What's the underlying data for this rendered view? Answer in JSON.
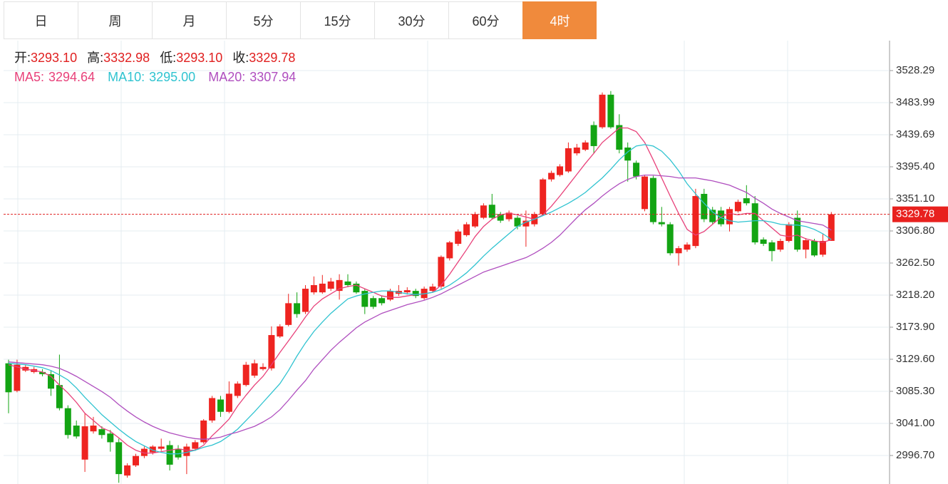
{
  "tabs": [
    "日",
    "周",
    "月",
    "5分",
    "15分",
    "30分",
    "60分",
    "4时"
  ],
  "active_tab": 7,
  "info": [
    {
      "label": "开:",
      "value": "3293.10"
    },
    {
      "label": "高:",
      "value": "3332.98"
    },
    {
      "label": "低:",
      "value": "3293.10"
    },
    {
      "label": "收:",
      "value": "3329.78"
    }
  ],
  "ma_info": [
    {
      "label": "MA5:",
      "value": "3294.64",
      "color": "#e8417a"
    },
    {
      "label": "MA10:",
      "value": "3295.00",
      "color": "#2fc3d0"
    },
    {
      "label": "MA20:",
      "value": "3307.94",
      "color": "#b04fbf"
    }
  ],
  "chart_data": {
    "type": "candlestick",
    "up_color": "#ee2420",
    "down_color": "#13a413",
    "ylim": [
      2957.32,
      3569.64
    ],
    "yticks": [
      3528.29,
      3483.99,
      3439.69,
      {
        "value": 3395.4,
        "label": "3395.40"
      },
      {
        "value": 3351.1,
        "label": "3351.10"
      },
      {
        "value": 3306.8,
        "label": "3306.80"
      },
      {
        "value": 3262.5,
        "label": "3262.50"
      },
      {
        "value": 3218.2,
        "label": "3218.20"
      },
      {
        "value": 3173.9,
        "label": "3173.90"
      },
      {
        "value": 3129.6,
        "label": "3129.60"
      },
      {
        "value": 3085.3,
        "label": "3085.30"
      },
      {
        "value": 3041.0,
        "label": "3041.00"
      },
      {
        "value": 2996.7,
        "label": "2996.70"
      }
    ],
    "grid": true,
    "open": [
      3124,
      3086,
      3114,
      3112,
      3112,
      3109,
      3094,
      3062,
      3038,
      2991,
      3030,
      3033,
      3027,
      3015,
      2969,
      2983,
      2996,
      3001,
      3006,
      3011,
      3006,
      2996,
      3006,
      3015,
      3045,
      3074,
      3057,
      3079,
      3094,
      3107,
      3116,
      3117,
      3161,
      3177,
      3207,
      3195,
      3222,
      3222,
      3227,
      3224,
      3237,
      3234,
      3224,
      3214,
      3214,
      3212,
      3220,
      3222,
      3224,
      3214,
      3224,
      3230,
      3269,
      3289,
      3301,
      3313,
      3325,
      3343,
      3330,
      3323,
      3325,
      3313,
      3316,
      3330,
      3378,
      3384,
      3389,
      3414,
      3419,
      3453,
      3450,
      3495,
      3453,
      3422,
      3401,
      3337,
      3380,
      3319,
      3316,
      3276,
      3281,
      3286,
      3358,
      3336,
      3335,
      3316,
      3334,
      3352,
      3345,
      3295,
      3291,
      3281,
      3293,
      3325,
      3281,
      3293,
      3274,
      3293.1
    ],
    "high": [
      3129,
      3129,
      3122,
      3119,
      3116,
      3114,
      3136,
      3066,
      3045,
      3055,
      3050,
      3037,
      3032,
      3020,
      2986,
      2999,
      3009,
      3011,
      3020,
      3017,
      3011,
      3013,
      3018,
      3047,
      3079,
      3079,
      3099,
      3099,
      3126,
      3129,
      3124,
      3175,
      3178,
      3220,
      3222,
      3232,
      3244,
      3246,
      3242,
      3247,
      3247,
      3237,
      3227,
      3217,
      3217,
      3227,
      3232,
      3229,
      3227,
      3230,
      3234,
      3273,
      3293,
      3309,
      3319,
      3333,
      3345,
      3358,
      3333,
      3335,
      3328,
      3335,
      3333,
      3380,
      3390,
      3399,
      3429,
      3427,
      3432,
      3458,
      3498,
      3500,
      3468,
      3429,
      3404,
      3384,
      3383,
      3340,
      3319,
      3286,
      3291,
      3365,
      3365,
      3340,
      3340,
      3340,
      3350,
      3370,
      3355,
      3298,
      3294,
      3296,
      3319,
      3335,
      3297,
      3296,
      3303,
      3332.98
    ],
    "low": [
      3055,
      3084,
      3112,
      3110,
      3106,
      3079,
      3059,
      3020,
      3020,
      2974,
      3027,
      3020,
      3002,
      2959,
      2966,
      2981,
      2993,
      2998,
      3003,
      2976,
      2991,
      2971,
      3003,
      3013,
      3042,
      3050,
      3055,
      3076,
      3092,
      3104,
      3114,
      3114,
      3159,
      3175,
      3187,
      3192,
      3219,
      3220,
      3224,
      3212,
      3229,
      3220,
      3192,
      3199,
      3204,
      3210,
      3217,
      3219,
      3214,
      3212,
      3222,
      3227,
      3266,
      3286,
      3299,
      3311,
      3323,
      3323,
      3318,
      3320,
      3309,
      3285,
      3313,
      3328,
      3375,
      3382,
      3387,
      3411,
      3417,
      3414,
      3448,
      3448,
      3414,
      3375,
      3378,
      3334,
      3316,
      3313,
      3273,
      3259,
      3278,
      3283,
      3319,
      3316,
      3313,
      3306,
      3332,
      3342,
      3288,
      3286,
      3265,
      3278,
      3291,
      3278,
      3269,
      3271,
      3271,
      3293.1
    ],
    "close": [
      3084,
      3122,
      3119,
      3116,
      3109,
      3089,
      3062,
      3025,
      3023,
      3037,
      3038,
      3025,
      3015,
      2971,
      2983,
      2996,
      3006,
      3009,
      3009,
      2984,
      2994,
      3009,
      3015,
      3045,
      3076,
      3057,
      3082,
      3096,
      3122,
      3124,
      3119,
      3163,
      3175,
      3207,
      3192,
      3227,
      3232,
      3234,
      3237,
      3239,
      3232,
      3222,
      3202,
      3202,
      3207,
      3224,
      3224,
      3225,
      3217,
      3227,
      3230,
      3271,
      3291,
      3306,
      3316,
      3330,
      3342,
      3325,
      3321,
      3332,
      3313,
      3321,
      3330,
      3378,
      3387,
      3396,
      3421,
      3422,
      3429,
      3424,
      3495,
      3450,
      3419,
      3404,
      3382,
      3382,
      3319,
      3316,
      3276,
      3283,
      3288,
      3355,
      3323,
      3319,
      3316,
      3337,
      3347,
      3345,
      3291,
      3289,
      3279,
      3293,
      3316,
      3281,
      3294,
      3273,
      3293,
      3329.78
    ],
    "series": [
      {
        "name": "MA5",
        "color": "#e8417a",
        "values": [
          3122,
          3119,
          3116,
          3114,
          3112,
          3106,
          3094,
          3083,
          3070,
          3055,
          3045,
          3035,
          3030,
          3021,
          3011,
          3004,
          3000,
          3000,
          3002,
          3004,
          3006,
          3004,
          3004,
          3011,
          3024,
          3035,
          3047,
          3065,
          3080,
          3094,
          3106,
          3122,
          3139,
          3155,
          3171,
          3188,
          3203,
          3213,
          3220,
          3227,
          3230,
          3232,
          3227,
          3222,
          3217,
          3215,
          3215,
          3217,
          3219,
          3220,
          3222,
          3232,
          3247,
          3264,
          3281,
          3299,
          3313,
          3323,
          3329,
          3331,
          3329,
          3326,
          3323,
          3329,
          3341,
          3355,
          3370,
          3385,
          3400,
          3414,
          3429,
          3439,
          3449,
          3449,
          3444,
          3429,
          3405,
          3380,
          3355,
          3331,
          3309,
          3301,
          3306,
          3316,
          3326,
          3331,
          3329,
          3331,
          3331,
          3321,
          3311,
          3301,
          3299,
          3301,
          3296,
          3293,
          3291,
          3294.64
        ]
      },
      {
        "name": "MA10",
        "color": "#2fc3d0",
        "values": [
          3124,
          3123,
          3122,
          3120,
          3118,
          3114,
          3108,
          3101,
          3090,
          3077,
          3065,
          3053,
          3043,
          3033,
          3024,
          3016,
          3010,
          3004,
          3001,
          2999,
          2999,
          3001,
          3004,
          3008,
          3011,
          3016,
          3024,
          3033,
          3045,
          3057,
          3070,
          3083,
          3096,
          3114,
          3134,
          3152,
          3168,
          3181,
          3193,
          3203,
          3213,
          3217,
          3220,
          3222,
          3224,
          3224,
          3222,
          3220,
          3219,
          3220,
          3222,
          3226,
          3232,
          3240,
          3249,
          3260,
          3272,
          3283,
          3293,
          3303,
          3313,
          3319,
          3323,
          3328,
          3333,
          3339,
          3345,
          3352,
          3360,
          3370,
          3380,
          3392,
          3405,
          3416,
          3424,
          3426,
          3424,
          3417,
          3405,
          3390,
          3372,
          3358,
          3345,
          3333,
          3325,
          3321,
          3319,
          3320,
          3321,
          3321,
          3319,
          3316,
          3315,
          3315,
          3313,
          3309,
          3303,
          3295.0
        ]
      },
      {
        "name": "MA20",
        "color": "#b04fbf",
        "values": [
          3126,
          3125,
          3124,
          3123,
          3122,
          3120,
          3117,
          3112,
          3106,
          3099,
          3092,
          3085,
          3077,
          3067,
          3058,
          3050,
          3043,
          3037,
          3032,
          3028,
          3025,
          3022,
          3020,
          3019,
          3020,
          3022,
          3026,
          3029,
          3033,
          3037,
          3043,
          3050,
          3060,
          3073,
          3087,
          3100,
          3116,
          3129,
          3142,
          3153,
          3163,
          3173,
          3181,
          3187,
          3193,
          3197,
          3201,
          3205,
          3208,
          3211,
          3215,
          3220,
          3226,
          3232,
          3238,
          3244,
          3250,
          3254,
          3258,
          3262,
          3266,
          3270,
          3276,
          3283,
          3291,
          3301,
          3313,
          3325,
          3336,
          3345,
          3355,
          3364,
          3372,
          3378,
          3382,
          3384,
          3384,
          3383,
          3382,
          3380,
          3380,
          3380,
          3378,
          3376,
          3373,
          3370,
          3365,
          3360,
          3352,
          3345,
          3337,
          3331,
          3326,
          3321,
          3319,
          3317,
          3315,
          3307.94
        ]
      }
    ]
  }
}
